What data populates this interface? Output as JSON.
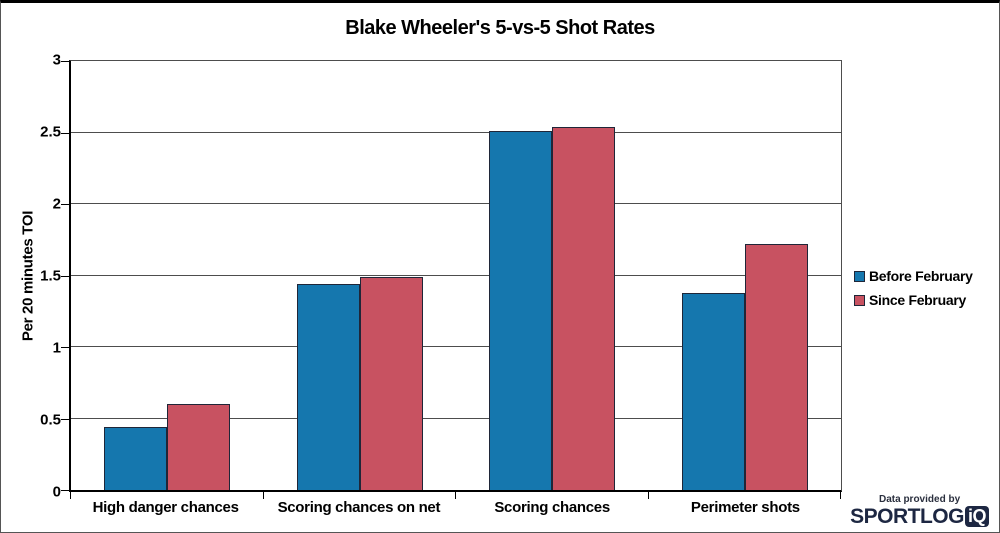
{
  "title": "Blake Wheeler's 5-vs-5 Shot Rates",
  "chart_data": {
    "type": "bar",
    "categories": [
      "High danger chances",
      "Scoring chances on net",
      "Scoring chances",
      "Perimeter shots"
    ],
    "series": [
      {
        "name": "Before February",
        "color": "#1577AE",
        "values": [
          0.44,
          1.44,
          2.51,
          1.38
        ]
      },
      {
        "name": "Since February",
        "color": "#C85261",
        "values": [
          0.6,
          1.49,
          2.54,
          1.72
        ]
      }
    ],
    "ylabel": "Per 20 minutes TOI",
    "ylim": [
      0,
      3
    ],
    "yticks": [
      0,
      0.5,
      1,
      1.5,
      2,
      2.5,
      3
    ],
    "ytick_labels": [
      "0",
      "0.5",
      "1",
      "1.5",
      "2",
      "2.5",
      "3"
    ],
    "grid": true,
    "legend_position": "right"
  },
  "footer": {
    "credit": "Data provided by",
    "logo_text": "SPORTLOG",
    "logo_badge": "iQ"
  }
}
